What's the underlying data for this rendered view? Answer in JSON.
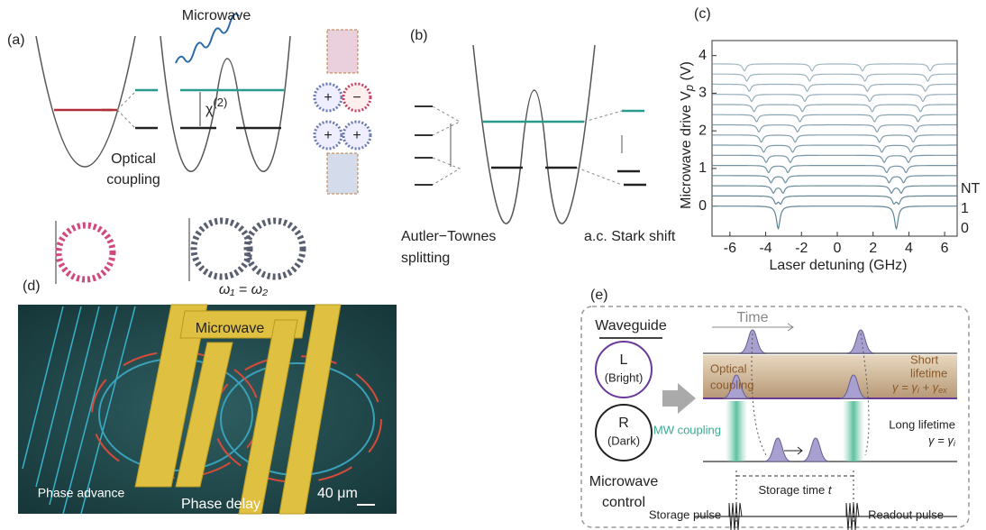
{
  "panel_a": {
    "label": "(a)",
    "microwave": "Microwave",
    "chi": "χ",
    "chi_order": "(2)",
    "plus_1": "+",
    "minus": "−",
    "plus_2": "+",
    "plus_3": "+",
    "optical": "Optical",
    "coupling": "coupling",
    "condition": "ω₁ = ω₂"
  },
  "panel_b": {
    "label": "(b)",
    "splitting_1": "Autler−Townes",
    "splitting_2": "splitting",
    "stark": "a.c. Stark shift"
  },
  "panel_c": {
    "label": "(c)",
    "chart_data": {
      "type": "line",
      "y_label": "Microwave drive V",
      "y_label_sub": "p",
      "y_label_unit": " (V)",
      "x_label": "Laser detuning (GHz)",
      "xlim": [
        -7,
        6.7
      ],
      "xticks": [
        -6,
        -4,
        -2,
        0,
        2,
        4,
        6
      ],
      "ylim": [
        -0.8,
        4.4
      ],
      "yticks": [
        0,
        1,
        2,
        3,
        4
      ],
      "side_labels": [
        "NT",
        "1",
        "0"
      ],
      "color": "#5f8496",
      "dip_centers": [
        -3.3,
        3.3
      ],
      "dip_depth": 0.3,
      "dip_width": 0.12,
      "traces": [
        {
          "offset": 0,
          "splitting": 0
        },
        {
          "offset": 0.27,
          "splitting": 0.27
        },
        {
          "offset": 0.54,
          "splitting": 0.54
        },
        {
          "offset": 0.81,
          "splitting": 0.81
        },
        {
          "offset": 1.08,
          "splitting": 1.08
        },
        {
          "offset": 1.35,
          "splitting": 1.35
        },
        {
          "offset": 1.62,
          "splitting": 1.62
        },
        {
          "offset": 1.89,
          "splitting": 1.89
        },
        {
          "offset": 2.16,
          "splitting": 2.16
        },
        {
          "offset": 2.43,
          "splitting": 2.43
        },
        {
          "offset": 2.7,
          "splitting": 2.7
        },
        {
          "offset": 2.97,
          "splitting": 2.97
        },
        {
          "offset": 3.24,
          "splitting": 3.24
        },
        {
          "offset": 3.51,
          "splitting": 3.51
        },
        {
          "offset": 3.78,
          "splitting": 3.78
        }
      ]
    }
  },
  "panel_d": {
    "label": "(d)",
    "microwave": "Microwave",
    "phase_advance": "Phase advance",
    "phase_delay": "Phase delay",
    "scale": "40 μm"
  },
  "panel_e": {
    "label": "(e)",
    "waveguide": "Waveguide",
    "l": "L",
    "bright": "(Bright)",
    "r": "R",
    "dark": "(Dark)",
    "microwave": "Microwave",
    "control": "control",
    "time": "Time",
    "optical": "Optical",
    "coupling": "coupling",
    "short": "Short",
    "lifetime": "lifetime",
    "gamma_short": [
      "γ = γ",
      "i",
      " + γ",
      "ex"
    ],
    "mw_coupling": "MW coupling",
    "long_lifetime": "Long lifetime",
    "gamma_long": [
      "γ = γ",
      "i"
    ],
    "storage_time": "Storage time ",
    "storage_t": "t",
    "storage_pulse": "Storage pulse",
    "readout_pulse": "Readout pulse"
  }
}
